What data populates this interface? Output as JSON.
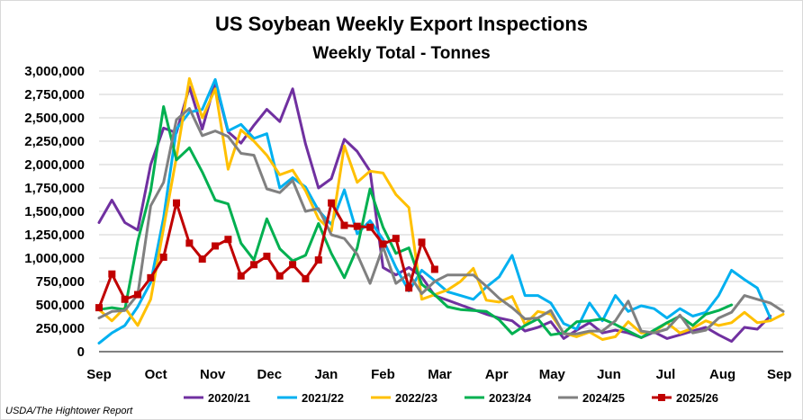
{
  "source": "USDA/The Hightower Report",
  "chart_data": {
    "type": "line",
    "title": "US Soybean Weekly Export Inspections",
    "subtitle": "Weekly Total - Tonnes",
    "xlabel": "",
    "ylabel": "",
    "ylim": [
      0,
      3000000
    ],
    "yticks": [
      0,
      250000,
      500000,
      750000,
      1000000,
      1250000,
      1500000,
      1750000,
      2000000,
      2250000,
      2500000,
      2750000,
      3000000
    ],
    "ytick_labels": [
      "0",
      "250,000",
      "500,000",
      "750,000",
      "1,000,000",
      "1,250,000",
      "1,500,000",
      "1,750,000",
      "2,000,000",
      "2,250,000",
      "2,500,000",
      "2,750,000",
      "3,000,000"
    ],
    "x_unit": "week of marketing year (Sep to Sep)",
    "xlim": [
      0,
      53
    ],
    "x_tick_labels": [
      {
        "label": "Sep",
        "x": 0
      },
      {
        "label": "Oct",
        "x": 4.4
      },
      {
        "label": "Nov",
        "x": 8.8
      },
      {
        "label": "Dec",
        "x": 13.2
      },
      {
        "label": "Jan",
        "x": 17.6
      },
      {
        "label": "Feb",
        "x": 22
      },
      {
        "label": "Mar",
        "x": 26.4
      },
      {
        "label": "Apr",
        "x": 30.8
      },
      {
        "label": "May",
        "x": 35.1
      },
      {
        "label": "Jun",
        "x": 39.5
      },
      {
        "label": "Jul",
        "x": 43.9
      },
      {
        "label": "Aug",
        "x": 48.3
      },
      {
        "label": "Sep",
        "x": 52.7
      }
    ],
    "grid": "horizontal",
    "legend_position": "bottom",
    "series": [
      {
        "name": "2020/21",
        "color": "#7030A0",
        "marker": "none",
        "values": [
          1380000,
          1620000,
          1380000,
          1300000,
          2000000,
          2390000,
          2340000,
          2830000,
          2380000,
          2880000,
          2350000,
          2230000,
          2420000,
          2590000,
          2460000,
          2810000,
          2220000,
          1750000,
          1850000,
          2270000,
          2140000,
          1930000,
          900000,
          820000,
          900000,
          800000,
          600000,
          550000,
          500000,
          450000,
          400000,
          360000,
          330000,
          220000,
          260000,
          320000,
          140000,
          230000,
          310000,
          200000,
          230000,
          200000,
          150000,
          210000,
          140000,
          180000,
          220000,
          260000,
          180000,
          110000,
          260000,
          240000,
          380000
        ]
      },
      {
        "name": "2021/22",
        "color": "#00B0F0",
        "marker": "none",
        "values": [
          90000,
          200000,
          280000,
          480000,
          740000,
          1430000,
          2380000,
          2560000,
          2590000,
          2910000,
          2360000,
          2430000,
          2280000,
          2330000,
          1750000,
          1860000,
          1760000,
          1510000,
          1360000,
          1730000,
          1260000,
          1400000,
          1200000,
          900000,
          650000,
          870000,
          760000,
          640000,
          600000,
          560000,
          690000,
          800000,
          1030000,
          600000,
          600000,
          520000,
          300000,
          240000,
          520000,
          330000,
          600000,
          430000,
          490000,
          460000,
          360000,
          460000,
          380000,
          420000,
          600000,
          870000,
          770000,
          680000,
          360000
        ]
      },
      {
        "name": "2022/23",
        "color": "#FFC000",
        "marker": "none",
        "values": [
          450000,
          330000,
          470000,
          280000,
          560000,
          1320000,
          2080000,
          2920000,
          2500000,
          2810000,
          1950000,
          2370000,
          2250000,
          2100000,
          1890000,
          1940000,
          1720000,
          1420000,
          1290000,
          2200000,
          1810000,
          1930000,
          1910000,
          1680000,
          1540000,
          560000,
          610000,
          660000,
          750000,
          890000,
          550000,
          530000,
          590000,
          290000,
          430000,
          400000,
          200000,
          160000,
          210000,
          130000,
          160000,
          320000,
          200000,
          210000,
          310000,
          200000,
          250000,
          330000,
          280000,
          310000,
          420000,
          310000,
          330000,
          400000
        ]
      },
      {
        "name": "2023/24",
        "color": "#00B050",
        "marker": "none",
        "values": [
          450000,
          470000,
          450000,
          1180000,
          1720000,
          2620000,
          2050000,
          2180000,
          1920000,
          1620000,
          1580000,
          1160000,
          980000,
          1420000,
          1100000,
          970000,
          1030000,
          1370000,
          1050000,
          790000,
          1110000,
          1740000,
          1330000,
          1050000,
          1110000,
          720000,
          610000,
          480000,
          450000,
          440000,
          430000,
          340000,
          190000,
          280000,
          350000,
          180000,
          200000,
          320000,
          330000,
          350000,
          290000,
          220000,
          150000,
          230000,
          310000,
          380000,
          280000,
          400000,
          440000,
          500000
        ]
      },
      {
        "name": "2024/25",
        "color": "#808080",
        "marker": "none",
        "values": [
          360000,
          430000,
          440000,
          610000,
          1560000,
          1810000,
          2480000,
          2600000,
          2310000,
          2360000,
          2300000,
          2120000,
          2100000,
          1740000,
          1700000,
          1830000,
          1500000,
          1530000,
          1250000,
          1210000,
          1040000,
          730000,
          1120000,
          730000,
          830000,
          620000,
          750000,
          820000,
          820000,
          820000,
          700000,
          570000,
          470000,
          350000,
          360000,
          440000,
          190000,
          190000,
          220000,
          220000,
          330000,
          540000,
          220000,
          200000,
          240000,
          390000,
          200000,
          230000,
          360000,
          420000,
          600000,
          560000,
          520000,
          430000
        ]
      },
      {
        "name": "2025/26",
        "color": "#C00000",
        "marker": "square",
        "values": [
          470000,
          830000,
          560000,
          610000,
          790000,
          1010000,
          1590000,
          1160000,
          990000,
          1130000,
          1200000,
          810000,
          930000,
          1020000,
          810000,
          930000,
          780000,
          980000,
          1590000,
          1350000,
          1340000,
          1330000,
          1150000,
          1210000,
          680000,
          1170000,
          880000
        ]
      }
    ]
  }
}
